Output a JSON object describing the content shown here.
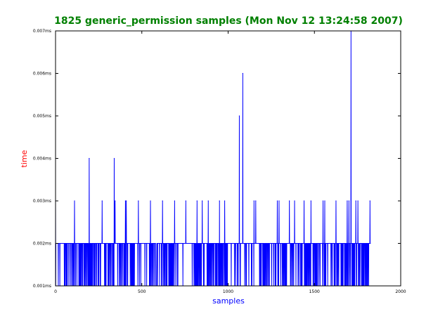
{
  "chart_data": {
    "type": "line",
    "title": "1825 generic_permission samples (Mon Nov 12 13:24:58 2007)",
    "xlabel": "samples",
    "ylabel": "time",
    "xlim": [
      0,
      2000
    ],
    "ylim": [
      0.001,
      0.007
    ],
    "x_ticks": [
      0,
      500,
      1000,
      1500,
      2000
    ],
    "x_tick_labels": [
      "0",
      "500",
      "1000",
      "1500",
      "2000"
    ],
    "y_ticks": [
      0.001,
      0.002,
      0.003,
      0.004,
      0.005,
      0.006,
      0.007
    ],
    "y_tick_labels": [
      "0.001ms",
      "0.002ms",
      "0.003ms",
      "0.004ms",
      "0.005ms",
      "0.006ms",
      "0.007ms"
    ],
    "grid": false,
    "legend": "none",
    "sample_count": 1825,
    "baseline": 0.002,
    "low_value": 0.001,
    "colors": {
      "title": "#008000",
      "xlabel": "#0000ff",
      "ylabel": "#ff0000",
      "series": "#0000ff"
    },
    "series": [
      {
        "points": [
          [
            0,
            0.003
          ],
          [
            1,
            0.001
          ],
          [
            110,
            0.003
          ],
          [
            195,
            0.004
          ],
          [
            270,
            0.003
          ],
          [
            340,
            0.004
          ],
          [
            345,
            0.003
          ],
          [
            405,
            0.003
          ],
          [
            410,
            0.003
          ],
          [
            480,
            0.003
          ],
          [
            550,
            0.003
          ],
          [
            620,
            0.003
          ],
          [
            690,
            0.003
          ],
          [
            755,
            0.003
          ],
          [
            820,
            0.003
          ],
          [
            850,
            0.003
          ],
          [
            885,
            0.003
          ],
          [
            950,
            0.003
          ],
          [
            980,
            0.003
          ],
          [
            1065,
            0.005
          ],
          [
            1085,
            0.006
          ],
          [
            1150,
            0.003
          ],
          [
            1160,
            0.003
          ],
          [
            1285,
            0.003
          ],
          [
            1295,
            0.003
          ],
          [
            1355,
            0.003
          ],
          [
            1385,
            0.003
          ],
          [
            1440,
            0.003
          ],
          [
            1480,
            0.003
          ],
          [
            1550,
            0.003
          ],
          [
            1560,
            0.003
          ],
          [
            1625,
            0.003
          ],
          [
            1690,
            0.003
          ],
          [
            1700,
            0.003
          ],
          [
            1712,
            0.007
          ],
          [
            1740,
            0.003
          ],
          [
            1752,
            0.003
          ],
          [
            1822,
            0.003
          ],
          [
            1824,
            0.002
          ]
        ]
      }
    ]
  }
}
